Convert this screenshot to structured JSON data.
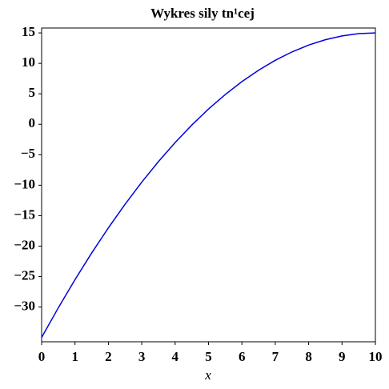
{
  "chart_data": {
    "type": "line",
    "title": "Wykres sily tn¹cej",
    "xlabel": "x",
    "x": [
      0,
      0.5,
      1,
      1.5,
      2,
      2.5,
      3,
      3.5,
      4,
      4.5,
      5,
      5.5,
      6,
      6.5,
      7,
      7.5,
      8,
      8.5,
      9,
      9.5,
      10
    ],
    "series": [
      {
        "color": "#0000e0",
        "values": [
          -35,
          -30.125,
          -25.5,
          -21.125,
          -17,
          -13.125,
          -9.5,
          -6.125,
          -3,
          -0.125,
          2.5,
          4.875,
          7,
          8.875,
          10.5,
          11.875,
          13,
          13.875,
          14.5,
          14.875,
          15
        ]
      }
    ],
    "xlim": [
      0,
      10
    ],
    "xticks": [
      0,
      1,
      2,
      3,
      4,
      5,
      6,
      7,
      8,
      9,
      10
    ],
    "ylim": [
      -35.7,
      15.8
    ],
    "yticks": [
      {
        "value": -30,
        "label": "−30"
      },
      {
        "value": -25,
        "label": "−25"
      },
      {
        "value": -20,
        "label": "−20"
      },
      {
        "value": -15,
        "label": "−15"
      },
      {
        "value": -10,
        "label": "−10"
      },
      {
        "value": -5,
        "label": "−5"
      },
      0,
      5,
      10,
      15
    ]
  }
}
